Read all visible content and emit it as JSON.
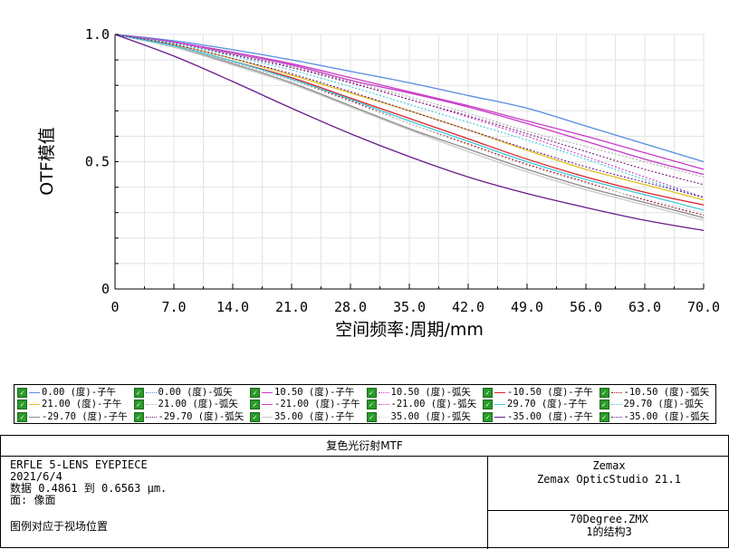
{
  "chart_data": {
    "type": "line",
    "title": "",
    "xlabel": "空间频率:周期/mm",
    "ylabel": "OTF模值",
    "xlim": [
      0,
      70
    ],
    "ylim": [
      0,
      1
    ],
    "x_ticks": [
      "0",
      "7.0",
      "14.0",
      "21.0",
      "28.0",
      "35.0",
      "42.0",
      "49.0",
      "56.0",
      "63.0",
      "70.0"
    ],
    "y_ticks": [
      "0",
      "0.5",
      "1.0"
    ],
    "grid": true,
    "legend_position": "bottom",
    "x": [
      0,
      7,
      14,
      21,
      28,
      35,
      42,
      49,
      56,
      63,
      70
    ],
    "series": [
      {
        "name": "0.00 (度)-子午",
        "color": "#5a8fe0",
        "dash": "solid",
        "values": [
          1.0,
          0.975,
          0.94,
          0.9,
          0.855,
          0.81,
          0.76,
          0.71,
          0.64,
          0.57,
          0.5
        ]
      },
      {
        "name": "0.00 (度)-弧矢",
        "color": "#5a8fe0",
        "dash": "dotted",
        "values": [
          1.0,
          0.975,
          0.94,
          0.9,
          0.855,
          0.81,
          0.76,
          0.71,
          0.64,
          0.57,
          0.5
        ]
      },
      {
        "name": "10.50 (度)-子午",
        "color": "#c83cc8",
        "dash": "solid",
        "values": [
          1.0,
          0.97,
          0.925,
          0.88,
          0.82,
          0.77,
          0.715,
          0.65,
          0.58,
          0.51,
          0.45
        ]
      },
      {
        "name": "10.50 (度)-弧矢",
        "color": "#c83cc8",
        "dash": "dotted",
        "values": [
          1.0,
          0.97,
          0.925,
          0.88,
          0.82,
          0.77,
          0.715,
          0.65,
          0.58,
          0.51,
          0.45
        ]
      },
      {
        "name": "-10.50 (度)-子午",
        "color": "#e0202a",
        "dash": "solid",
        "values": [
          1.0,
          0.955,
          0.895,
          0.83,
          0.75,
          0.67,
          0.59,
          0.51,
          0.44,
          0.38,
          0.33
        ]
      },
      {
        "name": "-10.50 (度)-弧矢",
        "color": "#a01020",
        "dash": "dotted",
        "values": [
          1.0,
          0.955,
          0.89,
          0.82,
          0.74,
          0.65,
          0.57,
          0.49,
          0.42,
          0.35,
          0.29
        ]
      },
      {
        "name": "21.00 (度)-子午",
        "color": "#e0c020",
        "dash": "solid",
        "values": [
          1.0,
          0.96,
          0.905,
          0.84,
          0.77,
          0.7,
          0.625,
          0.545,
          0.47,
          0.41,
          0.35
        ]
      },
      {
        "name": "21.00 (度)-弧矢",
        "color": "#a9a9a9",
        "dash": "dotted",
        "values": [
          1.0,
          0.97,
          0.925,
          0.875,
          0.815,
          0.755,
          0.69,
          0.62,
          0.56,
          0.5,
          0.44
        ]
      },
      {
        "name": "-21.00 (度)-子午",
        "color": "#c83cc8",
        "dash": "solid",
        "values": [
          1.0,
          0.97,
          0.93,
          0.885,
          0.83,
          0.775,
          0.72,
          0.66,
          0.6,
          0.535,
          0.47
        ]
      },
      {
        "name": "-21.00 (度)-弧矢",
        "color": "#c83cc8",
        "dash": "dotted",
        "values": [
          1.0,
          0.965,
          0.92,
          0.87,
          0.81,
          0.745,
          0.675,
          0.6,
          0.52,
          0.44,
          0.36
        ]
      },
      {
        "name": "-29.70 (度)-子午",
        "color": "#8a8a8a",
        "dash": "solid",
        "values": [
          1.0,
          0.95,
          0.885,
          0.81,
          0.72,
          0.63,
          0.55,
          0.47,
          0.4,
          0.34,
          0.28
        ]
      },
      {
        "name": "-29.70 (度)-弧矢",
        "color": "#7a1a7a",
        "dash": "dotted",
        "values": [
          1.0,
          0.965,
          0.92,
          0.87,
          0.81,
          0.745,
          0.68,
          0.61,
          0.54,
          0.47,
          0.41
        ]
      },
      {
        "name": "35.00 (度)-子午",
        "color": "#c8c8c8",
        "dash": "solid",
        "values": [
          1.0,
          0.95,
          0.88,
          0.805,
          0.715,
          0.625,
          0.54,
          0.46,
          0.39,
          0.33,
          0.27
        ]
      },
      {
        "name": "35.00 (度)-弧矢",
        "color": "#d0d0d0",
        "dash": "dotted",
        "values": [
          1.0,
          0.955,
          0.89,
          0.82,
          0.735,
          0.65,
          0.565,
          0.485,
          0.415,
          0.355,
          0.3
        ]
      },
      {
        "name": "29.70 (度)-子午",
        "color": "#3cc8d8",
        "dash": "solid",
        "values": [
          1.0,
          0.955,
          0.895,
          0.825,
          0.745,
          0.66,
          0.58,
          0.5,
          0.43,
          0.37,
          0.31
        ]
      },
      {
        "name": "29.70 (度)-弧矢",
        "color": "#3cc8d8",
        "dash": "dotted",
        "values": [
          1.0,
          0.965,
          0.915,
          0.86,
          0.795,
          0.725,
          0.655,
          0.585,
          0.51,
          0.43,
          0.36
        ]
      },
      {
        "name": "-35.00 (度)-子午",
        "color": "#6a1a8a",
        "dash": "solid",
        "values": [
          1.0,
          0.915,
          0.815,
          0.71,
          0.61,
          0.52,
          0.44,
          0.375,
          0.32,
          0.27,
          0.23
        ]
      },
      {
        "name": "-35.00 (度)-弧矢",
        "color": "#6a1a8a",
        "dash": "dotted",
        "values": [
          1.0,
          0.96,
          0.905,
          0.845,
          0.775,
          0.7,
          0.625,
          0.55,
          0.48,
          0.42,
          0.36
        ]
      }
    ]
  },
  "legend_order": [
    "0.00 (度)-子午",
    "0.00 (度)-弧矢",
    "10.50 (度)-子午",
    "10.50 (度)-弧矢",
    "-10.50 (度)-子午",
    "-10.50 (度)-弧矢",
    "21.00 (度)-子午",
    "21.00 (度)-弧矢",
    "-21.00 (度)-子午",
    "-21.00 (度)-弧矢",
    "29.70 (度)-子午",
    "29.70 (度)-弧矢",
    "-29.70 (度)-子午",
    "-29.70 (度)-弧矢",
    "35.00 (度)-子午",
    "35.00 (度)-弧矢",
    "-35.00 (度)-子午",
    "-35.00 (度)-弧矢"
  ],
  "info": {
    "title": "复色光衍射MTF",
    "left_lines": [
      "ERFLE 5-LENS EYEPIECE",
      "2021/6/4",
      "数据 0.4861 到 0.6563 μm.",
      "面: 像面"
    ],
    "left_note": "图例对应于视场位置",
    "right_top": [
      "Zemax",
      "Zemax OpticStudio 21.1"
    ],
    "right_bottom": [
      "70Degree.ZMX",
      "1的结构3"
    ]
  }
}
